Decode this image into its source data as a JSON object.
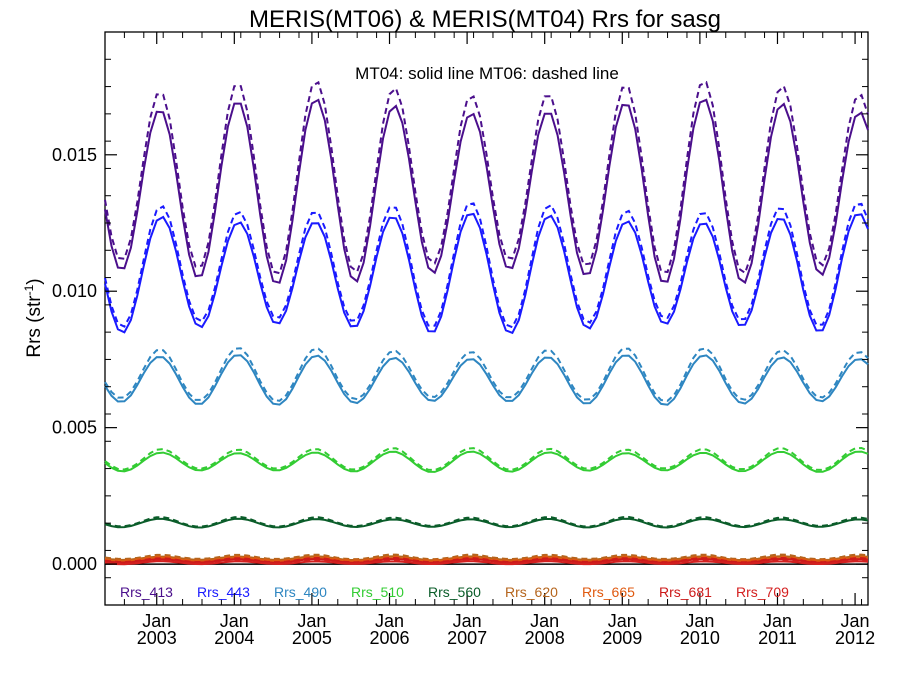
{
  "chart_data": {
    "type": "line",
    "title": "MERIS(MT06) & MERIS(MT04)  Rrs for sasg",
    "annotation": "MT04: solid line   MT06: dashed line",
    "ylabel_main": "Rrs (str",
    "ylabel_sup": "-1",
    "ylabel_tail": ")",
    "xlabel": "",
    "xlim": [
      "2002-05",
      "2012-03"
    ],
    "ylim": [
      -0.0015,
      0.0195
    ],
    "y_ticks": [
      {
        "value": 0.0,
        "label": "0.000"
      },
      {
        "value": 0.005,
        "label": "0.005"
      },
      {
        "value": 0.01,
        "label": "0.010"
      },
      {
        "value": 0.015,
        "label": "0.015"
      }
    ],
    "x_ticks": [
      {
        "month": "Jan",
        "year": "2003"
      },
      {
        "month": "Jan",
        "year": "2004"
      },
      {
        "month": "Jan",
        "year": "2005"
      },
      {
        "month": "Jan",
        "year": "2006"
      },
      {
        "month": "Jan",
        "year": "2007"
      },
      {
        "month": "Jan",
        "year": "2008"
      },
      {
        "month": "Jan",
        "year": "2009"
      },
      {
        "month": "Jan",
        "year": "2010"
      },
      {
        "month": "Jan",
        "year": "2011"
      },
      {
        "month": "Jan",
        "year": "2012"
      }
    ],
    "grid": false,
    "legend_position": "bottom",
    "line_styles": {
      "MT04": "solid",
      "MT06": "dashed"
    },
    "series": [
      {
        "name": "Rrs_413",
        "color": "#4b0f8c",
        "min": 0.0105,
        "max": 0.0168,
        "mt06_offset": 0.0005
      },
      {
        "name": "Rrs_443",
        "color": "#1a1aff",
        "min": 0.0086,
        "max": 0.0127,
        "mt06_offset": 0.0003
      },
      {
        "name": "Rrs_490",
        "color": "#2e86c1",
        "min": 0.0059,
        "max": 0.0076,
        "mt06_offset": 0.0002
      },
      {
        "name": "Rrs_510",
        "color": "#33cc33",
        "min": 0.0034,
        "max": 0.0041,
        "mt06_offset": 0.0001
      },
      {
        "name": "Rrs_560",
        "color": "#0b5d2a",
        "min": 0.00135,
        "max": 0.00165,
        "mt06_offset": 5e-05
      },
      {
        "name": "Rrs_620",
        "color": "#b5651d",
        "min": 0.00015,
        "max": 0.00028,
        "mt06_offset": 5e-05
      },
      {
        "name": "Rrs_665",
        "color": "#e05a10",
        "min": 0.0001,
        "max": 0.00022,
        "mt06_offset": 4e-05
      },
      {
        "name": "Rrs_681",
        "color": "#cc1a1a",
        "min": 5e-05,
        "max": 0.00018,
        "mt06_offset": 3e-05
      },
      {
        "name": "Rrs_709",
        "color": "#d42020",
        "min": 0.0,
        "max": 0.0001,
        "mt06_offset": 2e-05
      }
    ]
  }
}
